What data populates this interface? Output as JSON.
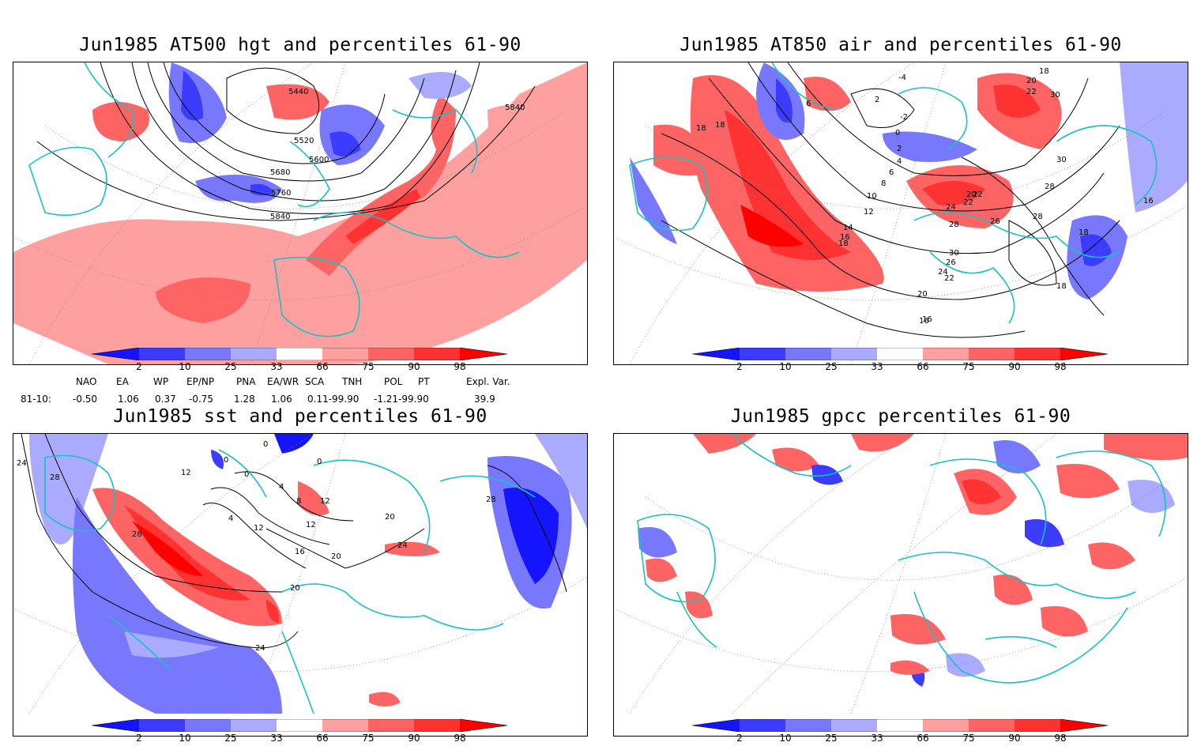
{
  "panels": [
    {
      "title": "Jun1985 AT500 hgt and percentiles 61-90",
      "contour_labels": [
        "5440",
        "5520",
        "5600",
        "5680",
        "5760",
        "5840",
        "5840"
      ]
    },
    {
      "title": "Jun1985 AT850 air and percentiles 61-90",
      "contour_labels": [
        "-4",
        "-2",
        "0",
        "2",
        "2",
        "4",
        "6",
        "6",
        "8",
        "10",
        "12",
        "14",
        "16",
        "18",
        "18",
        "18",
        "18",
        "16",
        "16",
        "18",
        "20",
        "22",
        "22",
        "24",
        "24",
        "26",
        "26",
        "28",
        "28",
        "28",
        "30",
        "30",
        "30",
        "20",
        "22",
        "18",
        "20",
        "22",
        "16"
      ]
    },
    {
      "title": "Jun1985 sst and percentiles 61-90",
      "contour_labels": [
        "24",
        "28",
        "28",
        "12",
        "0",
        "0",
        "0",
        "0",
        "4",
        "8",
        "4",
        "12",
        "16",
        "20",
        "20",
        "20",
        "24",
        "24",
        "28",
        "12",
        "12"
      ]
    },
    {
      "title": "Jun1985 gpcc percentiles 61-90",
      "contour_labels": []
    }
  ],
  "colorbar": {
    "labels": [
      "2",
      "10",
      "25",
      "33",
      "66",
      "75",
      "90",
      "98"
    ],
    "colors": {
      "below_2": "#1414ff",
      "b2_10": "#3c3cff",
      "b10_25": "#7878ff",
      "b25_33": "#aaaaff",
      "b33_66": "#ffffff",
      "b66_75": "#ffa0a0",
      "b75_90": "#ff6464",
      "b90_98": "#ff3232",
      "above_98": "#ff0000"
    }
  },
  "indices": {
    "headers": [
      "NAO",
      "EA",
      "WP",
      "EP/NP",
      "PNA",
      "EA/WR",
      "SCA",
      "TNH",
      "POL",
      "PT",
      "Expl. Var."
    ],
    "row_label": "81-10:",
    "values": [
      "-0.50",
      "1.06",
      "0.37",
      "-0.75",
      "1.28",
      "1.06",
      "0.11-99.90",
      "-1.21-99.90",
      "39.9"
    ]
  },
  "colors": {
    "coastline": "#17c2c2",
    "contour": "#000000",
    "gridline": "#888888"
  }
}
